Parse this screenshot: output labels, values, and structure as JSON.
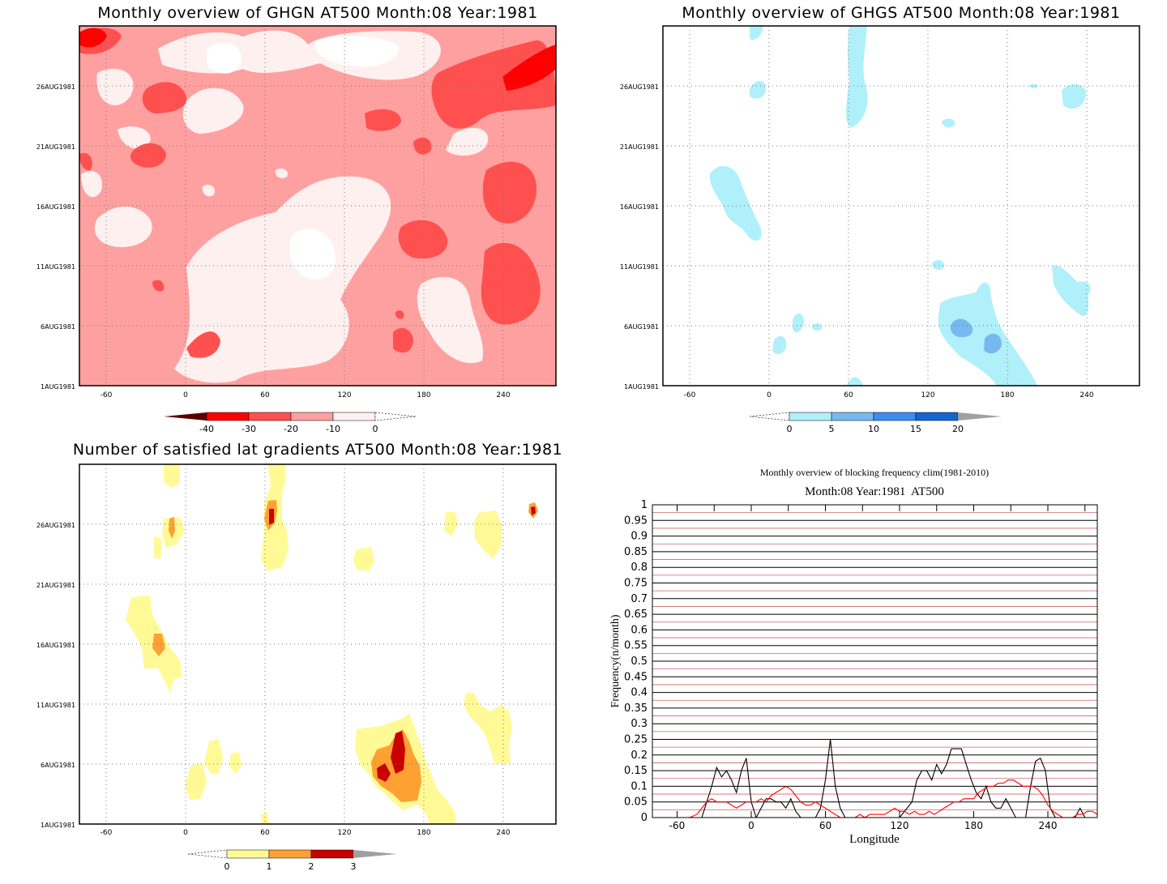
{
  "chart_data": [
    {
      "type": "heatmap",
      "title": "Monthly overview of GHGN AT500 Month:08 Year:1981",
      "xticks": [
        "-60",
        "0",
        "60",
        "120",
        "180",
        "240"
      ],
      "yticks": [
        "1AUG1981",
        "6AUG1981",
        "11AUG1981",
        "16AUG1981",
        "21AUG1981",
        "26AUG1981"
      ],
      "xlim": [
        -80,
        280
      ],
      "ylim_days": [
        1,
        31
      ],
      "colorbar": {
        "labels": [
          "-40",
          "-30",
          "-20",
          "-10",
          "0"
        ],
        "colors": [
          "#5a0000",
          "#ff0000",
          "#ff5050",
          "#ffa0a0",
          "#fff0f0"
        ]
      },
      "grid": true,
      "colors": {
        "background": "#ffa0a0",
        "level_light": "#fff0f0",
        "level_dark": "#ff5050",
        "level_darkest": "#ff0000"
      }
    },
    {
      "type": "heatmap",
      "title": "Monthly overview of GHGS AT500 Month:08 Year:1981",
      "xticks": [
        "-60",
        "0",
        "60",
        "120",
        "180",
        "240"
      ],
      "yticks": [
        "1AUG1981",
        "6AUG1981",
        "11AUG1981",
        "16AUG1981",
        "21AUG1981",
        "26AUG1981"
      ],
      "xlim": [
        -80,
        280
      ],
      "ylim_days": [
        1,
        31
      ],
      "colorbar": {
        "labels": [
          "0",
          "5",
          "10",
          "15",
          "20"
        ],
        "colors": [
          "#b0f0fa",
          "#78b8f0",
          "#3c8cf0",
          "#1464d2",
          "#a0a0a0"
        ]
      },
      "grid": true,
      "colors": {
        "level_1": "#b0f0fa",
        "level_2": "#78b8f0"
      }
    },
    {
      "type": "heatmap",
      "title": "Number of satisfied lat gradients AT500 Month:08 Year:1981",
      "xticks": [
        "-60",
        "0",
        "60",
        "120",
        "180",
        "240"
      ],
      "yticks": [
        "1AUG1981",
        "6AUG1981",
        "11AUG1981",
        "16AUG1981",
        "21AUG1981",
        "26AUG1981"
      ],
      "xlim": [
        -80,
        280
      ],
      "ylim_days": [
        1,
        31
      ],
      "colorbar": {
        "labels": [
          "0",
          "1",
          "2",
          "3"
        ],
        "colors": [
          "#fffa96",
          "#ffa032",
          "#c80000",
          "#a0a0a0"
        ]
      },
      "grid": true,
      "colors": {
        "level_1": "#fffa96",
        "level_2": "#ffa032",
        "level_3": "#c80000"
      }
    },
    {
      "type": "line",
      "title": "Monthly overview of blocking frequency clim(1981-2010)",
      "subtitle": "Month:08 Year:1981  AT500",
      "xlabel": "Longitude",
      "ylabel": "Frequency(n/month)",
      "xlim": [
        -80,
        280
      ],
      "ylim": [
        0,
        1
      ],
      "xticks": [
        "-60",
        "0",
        "60",
        "120",
        "180",
        "240"
      ],
      "yticks": [
        "0",
        "0.05",
        "0.1",
        "0.15",
        "0.2",
        "0.25",
        "0.3",
        "0.35",
        "0.4",
        "0.45",
        "0.5",
        "0.55",
        "0.6",
        "0.65",
        "0.7",
        "0.75",
        "0.8",
        "0.85",
        "0.9",
        "0.95",
        "1"
      ],
      "series": [
        {
          "color": "#000000",
          "x": [
            -80,
            -45,
            -40,
            -36,
            -32,
            -28,
            -24,
            -20,
            -16,
            -12,
            -8,
            -4,
            0,
            4,
            8,
            12,
            16,
            20,
            24,
            28,
            32,
            36,
            40,
            44,
            48,
            52,
            56,
            60,
            64,
            68,
            72,
            76,
            80,
            84,
            88,
            120,
            130,
            134,
            138,
            142,
            146,
            150,
            154,
            158,
            162,
            166,
            170,
            174,
            178,
            182,
            186,
            190,
            194,
            198,
            202,
            206,
            210,
            214,
            218,
            222,
            226,
            230,
            234,
            238,
            242,
            246,
            250,
            254,
            258,
            262,
            266,
            270,
            274,
            280
          ],
          "y": [
            0,
            0,
            0,
            0.05,
            0.1,
            0.16,
            0.13,
            0.15,
            0.12,
            0.08,
            0.15,
            0.19,
            0.05,
            0,
            0.03,
            0.06,
            0.06,
            0.05,
            0.05,
            0.03,
            0.06,
            0.02,
            0,
            0,
            0,
            0,
            0.03,
            0.12,
            0.25,
            0.1,
            0.03,
            0,
            0,
            0,
            0,
            0,
            0.05,
            0.12,
            0.15,
            0.15,
            0.12,
            0.17,
            0.14,
            0.17,
            0.22,
            0.22,
            0.22,
            0.17,
            0.12,
            0.08,
            0.06,
            0.1,
            0.05,
            0.03,
            0.03,
            0.06,
            0.03,
            0,
            0,
            0,
            0.1,
            0.18,
            0.19,
            0.15,
            0.03,
            0,
            0,
            0,
            0,
            0,
            0.03,
            0,
            0,
            0
          ]
        },
        {
          "color": "#ff0000",
          "x": [
            -80,
            -50,
            -44,
            -40,
            -36,
            -32,
            -28,
            -24,
            -20,
            -16,
            -12,
            -8,
            -4,
            0,
            4,
            8,
            12,
            16,
            20,
            24,
            28,
            32,
            36,
            40,
            44,
            48,
            52,
            56,
            60,
            64,
            68,
            72,
            76,
            80,
            84,
            88,
            92,
            96,
            100,
            104,
            108,
            112,
            116,
            120,
            124,
            128,
            132,
            136,
            140,
            144,
            148,
            152,
            156,
            160,
            164,
            168,
            172,
            176,
            180,
            184,
            188,
            192,
            196,
            200,
            204,
            208,
            212,
            216,
            220,
            224,
            228,
            232,
            236,
            240,
            244,
            248,
            252,
            256,
            260,
            264,
            268,
            272,
            276,
            280
          ],
          "y": [
            0,
            0,
            0.01,
            0.03,
            0.05,
            0.06,
            0.05,
            0.05,
            0.05,
            0.04,
            0.03,
            0.04,
            0.05,
            0.05,
            0.05,
            0.06,
            0.05,
            0.07,
            0.08,
            0.09,
            0.1,
            0.09,
            0.07,
            0.05,
            0.04,
            0.04,
            0.05,
            0.04,
            0.03,
            0.02,
            0.01,
            0,
            0,
            0,
            0,
            0.01,
            0,
            0.01,
            0.01,
            0.01,
            0.01,
            0.02,
            0.03,
            0.02,
            0.02,
            0.01,
            0.02,
            0.01,
            0.01,
            0.02,
            0.01,
            0.02,
            0.03,
            0.04,
            0.05,
            0.05,
            0.06,
            0.06,
            0.06,
            0.08,
            0.09,
            0.1,
            0.1,
            0.11,
            0.11,
            0.12,
            0.12,
            0.11,
            0.1,
            0.1,
            0.1,
            0.09,
            0.07,
            0.04,
            0.02,
            0.01,
            0,
            0,
            0,
            0.01,
            0.01,
            0.02,
            0.02,
            0.01
          ]
        }
      ],
      "grid": true,
      "colors": {
        "grid_major": "#000000",
        "grid_minor": "#cc6666"
      }
    }
  ]
}
